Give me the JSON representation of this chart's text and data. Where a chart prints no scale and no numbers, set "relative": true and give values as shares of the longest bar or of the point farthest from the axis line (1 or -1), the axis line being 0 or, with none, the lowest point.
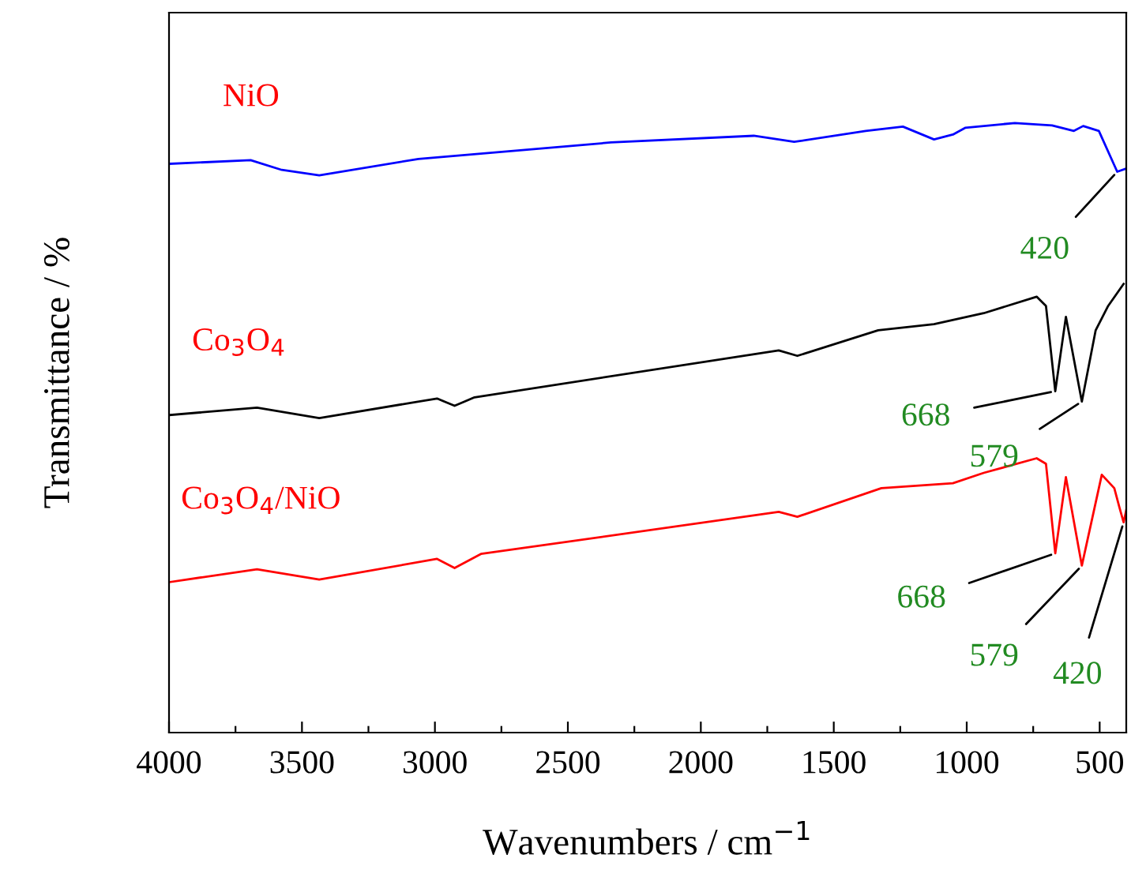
{
  "chart_data": {
    "type": "line",
    "relative": true,
    "xlabel": "Wavenumbers / cm$^{−1}$",
    "ylabel": "Transmittance / %",
    "xlim": [
      4000,
      400
    ],
    "xticks": [
      4000,
      {
        "value": 3750,
        "label": null
      },
      3500,
      {
        "value": 3250,
        "label": null
      },
      3000,
      {
        "value": 2750,
        "label": null
      },
      2500,
      {
        "value": 2250,
        "label": null
      },
      2000,
      {
        "value": 1750,
        "label": null
      },
      1500,
      {
        "value": 1250,
        "label": null
      },
      1000,
      {
        "value": 750,
        "label": null
      },
      500
    ],
    "tick_labels": "x",
    "grid": false,
    "marker": "none",
    "line_style": "solid",
    "series": [
      {
        "name": "NiO",
        "color": "#0000ff",
        "x": [
          3996,
          3693,
          3576,
          3435,
          3062,
          2338,
          1801,
          1649,
          1380,
          1240,
          1123,
          1052,
          1006,
          819,
          679,
          597,
          562,
          503,
          434,
          402
        ],
        "values": [
          0.933,
          0.939,
          0.923,
          0.914,
          0.941,
          0.968,
          0.979,
          0.969,
          0.987,
          0.994,
          0.973,
          0.981,
          0.992,
          1.0,
          0.996,
          0.987,
          0.995,
          0.987,
          0.92,
          0.925
        ]
      },
      {
        "name": "Co$_{3}$O$_{4}$",
        "color": "#000000",
        "x": [
          3996,
          3669,
          3435,
          2992,
          2926,
          2851,
          1707,
          1637,
          1333,
          1123,
          936,
          737,
          702,
          667,
          627,
          567,
          515,
          468,
          410
        ],
        "values": [
          0.521,
          0.533,
          0.516,
          0.548,
          0.536,
          0.55,
          0.627,
          0.618,
          0.66,
          0.67,
          0.688,
          0.715,
          0.7,
          0.56,
          0.682,
          0.543,
          0.66,
          0.7,
          0.736
        ]
      },
      {
        "name": "Co$_{3}$O$_{4}$/NiO",
        "color": "#ff0000",
        "x": [
          3996,
          3669,
          3435,
          2992,
          2926,
          2827,
          1707,
          1637,
          1321,
          1052,
          936,
          737,
          702,
          667,
          627,
          567,
          492,
          445,
          426,
          410,
          400
        ],
        "values": [
          0.247,
          0.268,
          0.251,
          0.285,
          0.27,
          0.293,
          0.362,
          0.354,
          0.401,
          0.409,
          0.426,
          0.45,
          0.441,
          0.294,
          0.419,
          0.274,
          0.423,
          0.401,
          0.37,
          0.345,
          0.365
        ]
      }
    ],
    "annotations": [
      {
        "text": "420",
        "x": 434,
        "y": 0.92
      },
      {
        "text": "668",
        "x": 667,
        "y": 0.56
      },
      {
        "text": "579",
        "x": 567,
        "y": 0.543
      },
      {
        "text": "668",
        "x": 667,
        "y": 0.294
      },
      {
        "text": "579",
        "x": 567,
        "y": 0.274
      },
      {
        "text": "420",
        "x": 410,
        "y": 0.345
      }
    ]
  }
}
